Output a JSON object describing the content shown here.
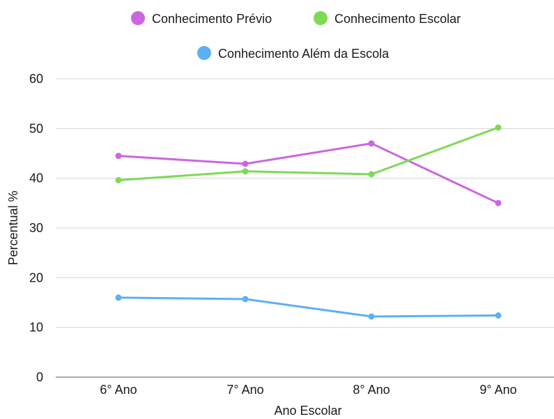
{
  "chart_data": {
    "type": "line",
    "categories": [
      "6° Ano",
      "7° Ano",
      "8° Ano",
      "9° Ano"
    ],
    "series": [
      {
        "name": "Conhecimento Prévio",
        "color": "#cc66e0",
        "values": [
          44.5,
          42.9,
          47.0,
          35.0
        ]
      },
      {
        "name": "Conhecimento Escolar",
        "color": "#7ed957",
        "values": [
          39.6,
          41.4,
          40.8,
          50.2
        ]
      },
      {
        "name": "Conhecimento Além da Escola",
        "color": "#5cb0f5",
        "values": [
          16.0,
          15.7,
          12.2,
          12.4
        ]
      }
    ],
    "xlabel": "Ano Escolar",
    "ylabel": "Percentual %",
    "ylim": [
      0,
      60
    ],
    "yticks": [
      0,
      10,
      20,
      30,
      40,
      50,
      60
    ],
    "grid": true,
    "legend_position": "top"
  }
}
